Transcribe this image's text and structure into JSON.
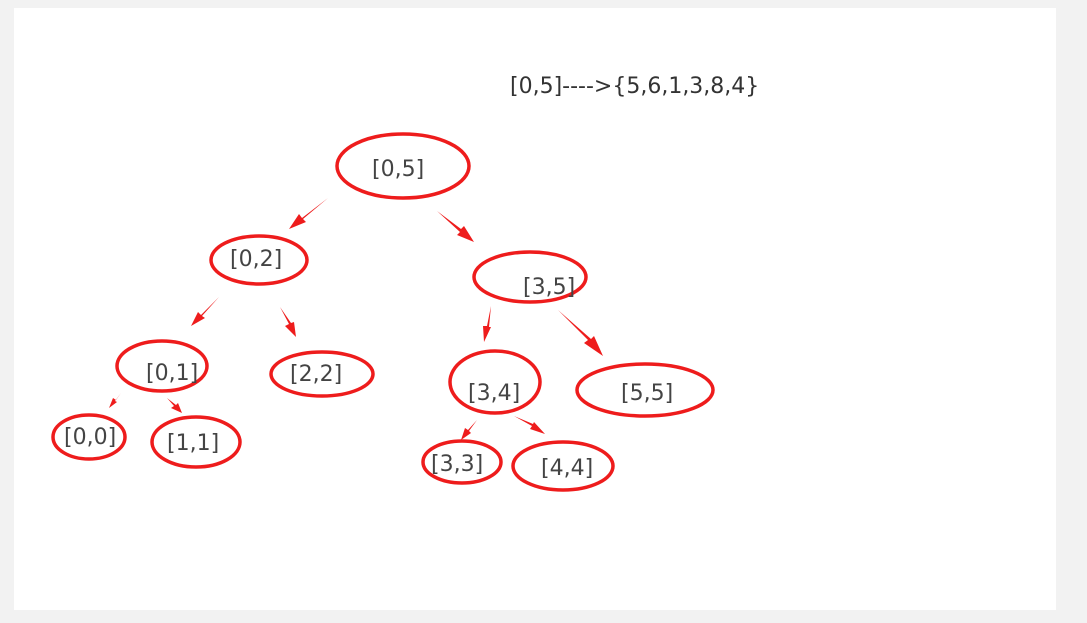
{
  "caption": "[0,5]---->{5,6,1,3,8,4}",
  "colors": {
    "background": "#f2f2f2",
    "canvas": "#ffffff",
    "accent": "#ee1c1c",
    "text": "#444444"
  },
  "nodes": [
    {
      "id": "n05",
      "label": "[0,5]"
    },
    {
      "id": "n02",
      "label": "[0,2]"
    },
    {
      "id": "n35",
      "label": "[3,5]"
    },
    {
      "id": "n01",
      "label": "[0,1]"
    },
    {
      "id": "n22",
      "label": "[2,2]"
    },
    {
      "id": "n34",
      "label": "[3,4]"
    },
    {
      "id": "n55",
      "label": "[5,5]"
    },
    {
      "id": "n00",
      "label": "[0,0]"
    },
    {
      "id": "n11",
      "label": "[1,1]"
    },
    {
      "id": "n33",
      "label": "[3,3]"
    },
    {
      "id": "n44",
      "label": "[4,4]"
    }
  ],
  "edges": [
    {
      "from": "n05",
      "to": "n02"
    },
    {
      "from": "n05",
      "to": "n35"
    },
    {
      "from": "n02",
      "to": "n01"
    },
    {
      "from": "n02",
      "to": "n22"
    },
    {
      "from": "n35",
      "to": "n34"
    },
    {
      "from": "n35",
      "to": "n55"
    },
    {
      "from": "n01",
      "to": "n00"
    },
    {
      "from": "n01",
      "to": "n11"
    },
    {
      "from": "n34",
      "to": "n33"
    },
    {
      "from": "n34",
      "to": "n44"
    }
  ]
}
